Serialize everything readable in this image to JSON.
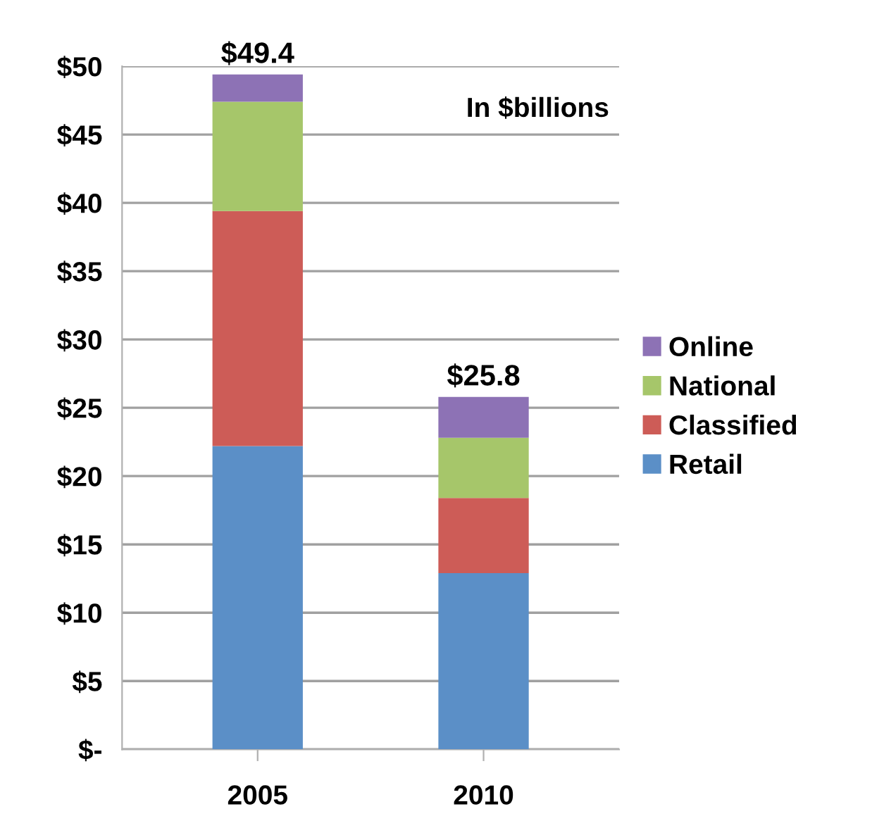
{
  "chart_data": {
    "type": "bar",
    "stacked": true,
    "categories": [
      "2005",
      "2010"
    ],
    "series": [
      {
        "name": "Retail",
        "color": "#5b8fc7",
        "values": [
          22.2,
          12.9
        ]
      },
      {
        "name": "Classified",
        "color": "#cd5c57",
        "values": [
          17.2,
          5.5
        ]
      },
      {
        "name": "National",
        "color": "#a6c66a",
        "values": [
          8.0,
          4.4
        ]
      },
      {
        "name": "Online",
        "color": "#8d72b5",
        "values": [
          2.0,
          3.0
        ]
      }
    ],
    "totals": [
      "$49.4",
      "$25.8"
    ],
    "annotations": [
      "In $billions"
    ],
    "ylim": [
      0,
      50
    ],
    "yticks": [
      {
        "value": 0,
        "label": "$-"
      },
      {
        "value": 5,
        "label": "$5"
      },
      {
        "value": 10,
        "label": "$10"
      },
      {
        "value": 15,
        "label": "$15"
      },
      {
        "value": 20,
        "label": "$20"
      },
      {
        "value": 25,
        "label": "$25"
      },
      {
        "value": 30,
        "label": "$30"
      },
      {
        "value": 35,
        "label": "$35"
      },
      {
        "value": 40,
        "label": "$40"
      },
      {
        "value": 45,
        "label": "$45"
      },
      {
        "value": 50,
        "label": "$50"
      }
    ],
    "grid": "y",
    "legend": "right"
  }
}
